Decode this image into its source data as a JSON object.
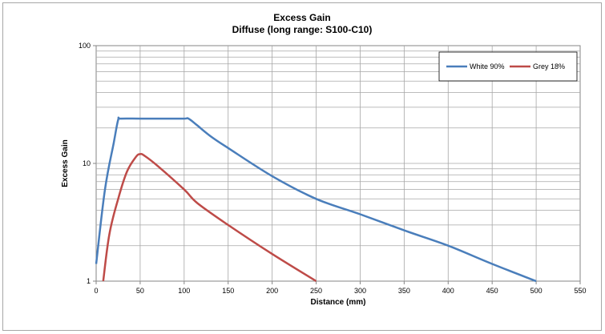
{
  "chart_data": {
    "type": "line",
    "title": "Excess Gain",
    "subtitle": "Diffuse (long range: S100-C10)",
    "xlabel": "Distance (mm)",
    "ylabel": "Excess Gain",
    "xlim": [
      0,
      550
    ],
    "ylim": [
      1,
      100
    ],
    "yscale": "log",
    "x_ticks": [
      0,
      50,
      100,
      150,
      200,
      250,
      300,
      350,
      400,
      450,
      500,
      550
    ],
    "y_ticks": [
      1,
      10,
      100
    ],
    "grid": true,
    "legend_position": "top-right",
    "series": [
      {
        "name": "White 90%",
        "color": "#4a7ebb",
        "x": [
          0,
          10,
          20,
          25,
          28,
          50,
          75,
          100,
          105,
          115,
          130,
          150,
          200,
          250,
          300,
          350,
          400,
          450,
          500
        ],
        "y": [
          1.4,
          6,
          15,
          23.5,
          24,
          24,
          24,
          24,
          24,
          21,
          17,
          13.5,
          7.8,
          5,
          3.7,
          2.7,
          2.0,
          1.4,
          1.0
        ]
      },
      {
        "name": "Grey 18%",
        "color": "#be4b48",
        "x": [
          8,
          15,
          25,
          35,
          45,
          50,
          55,
          70,
          100,
          115,
          150,
          200,
          250
        ],
        "y": [
          1.0,
          2.5,
          5,
          8.5,
          11.3,
          12,
          11.6,
          9.5,
          6,
          4.6,
          3.0,
          1.7,
          1.0
        ]
      }
    ]
  }
}
